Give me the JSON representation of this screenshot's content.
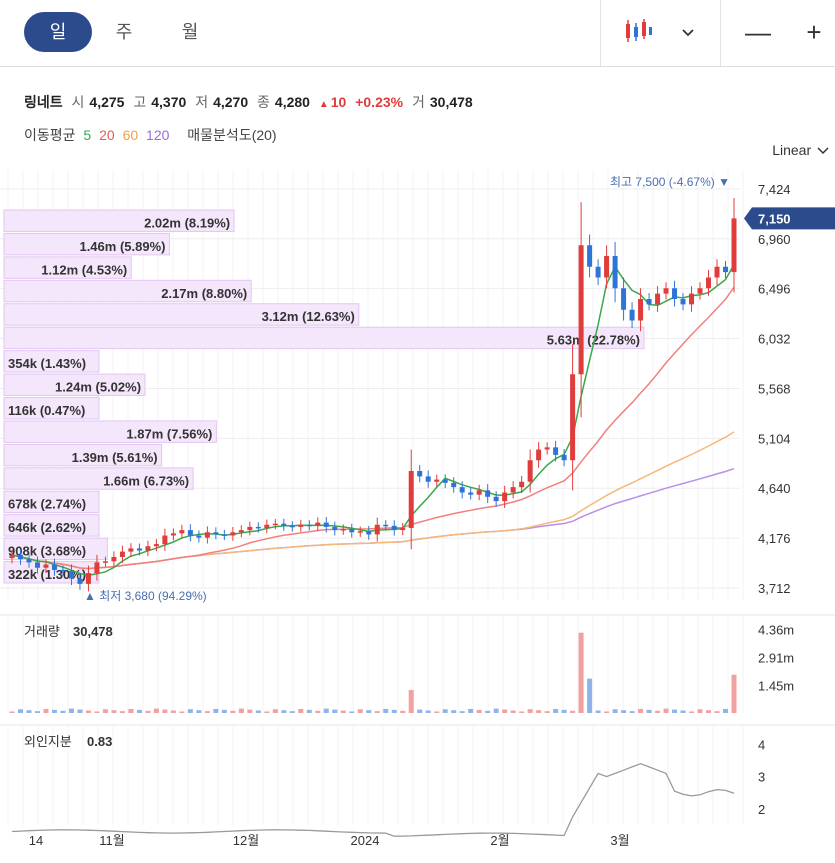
{
  "tabs": [
    {
      "label": "일",
      "active": true
    },
    {
      "label": "주",
      "active": false
    },
    {
      "label": "월",
      "active": false
    }
  ],
  "toolbar": {
    "zoom_out": "—",
    "zoom_in": "+",
    "chart_type_icon": "candlestick-icon",
    "dropdown_icon": "chevron-down-icon"
  },
  "stock": {
    "name": "링네트",
    "open_label": "시",
    "open": "4,275",
    "high_label": "고",
    "high": "4,370",
    "low_label": "저",
    "low": "4,270",
    "close_label": "종",
    "close": "4,280",
    "change_arrow": "▲",
    "change": "10",
    "change_pct": "+0.23%",
    "volume_label": "거",
    "volume": "30,478"
  },
  "indicators": {
    "ma_label": "이동평균",
    "ma": [
      {
        "period": "5",
        "color": "#3aa84a"
      },
      {
        "period": "20",
        "color": "#e85a5a"
      },
      {
        "period": "60",
        "color": "#f0a050"
      },
      {
        "period": "120",
        "color": "#9a6ae0"
      }
    ],
    "profile_label": "매물분석도(20)"
  },
  "scale_label": "Linear",
  "high_marker": "최고 7,500 (-4.67%) ▼",
  "low_marker": "▲ 최저 3,680 (94.29%)",
  "current_price": "7,150",
  "price_axis": [
    "7,424",
    "6,960",
    "6,496",
    "6,032",
    "5,568",
    "5,104",
    "4,640",
    "4,176",
    "3,712"
  ],
  "volume_panel": {
    "label": "거래량",
    "value": "30,478",
    "ticks": [
      "4.36m",
      "2.91m",
      "1.45m"
    ]
  },
  "foreign_panel": {
    "label": "외인지분",
    "value": "0.83",
    "ticks": [
      "4",
      "3",
      "2"
    ]
  },
  "x_axis": [
    "14",
    "11월",
    "12월",
    "2024",
    "2월",
    "3월"
  ],
  "colors": {
    "up": "#e03c3c",
    "down": "#2e74d8",
    "accent": "#2b4b8c",
    "profile": "#f0e0f8"
  },
  "chart_data": {
    "type": "candlestick",
    "price_range": [
      3600,
      7600
    ],
    "closes": [
      4020,
      3980,
      3950,
      3900,
      3930,
      3880,
      3870,
      3800,
      3750,
      3850,
      3950,
      3960,
      4000,
      4050,
      4080,
      4060,
      4100,
      4120,
      4200,
      4220,
      4250,
      4200,
      4180,
      4230,
      4210,
      4200,
      4230,
      4250,
      4280,
      4270,
      4300,
      4310,
      4290,
      4280,
      4300,
      4290,
      4320,
      4280,
      4250,
      4260,
      4230,
      4240,
      4210,
      4300,
      4290,
      4250,
      4270,
      4800,
      4750,
      4700,
      4720,
      4690,
      4650,
      4600,
      4580,
      4620,
      4560,
      4520,
      4600,
      4650,
      4700,
      4900,
      5000,
      5020,
      4950,
      4900,
      5700,
      6900,
      6700,
      6600,
      6800,
      6500,
      6300,
      6200,
      6400,
      6350,
      6450,
      6500,
      6400,
      6350,
      6450,
      6500,
      6600,
      6700,
      6650,
      7150
    ],
    "volume_ticks": [
      4.36,
      2.91,
      1.45
    ],
    "volume_spikes": [
      {
        "index": 47,
        "volume": 1.2
      },
      {
        "index": 67,
        "volume": 4.2
      },
      {
        "index": 68,
        "volume": 1.8
      },
      {
        "index": 85,
        "volume": 2.0
      }
    ],
    "foreign_range": [
      1.5,
      4.6
    ],
    "volume_profile": [
      {
        "label": "2.02m (8.19%)",
        "pct": 8.19
      },
      {
        "label": "1.46m (5.89%)",
        "pct": 5.89
      },
      {
        "label": "1.12m (4.53%)",
        "pct": 4.53
      },
      {
        "label": "2.17m (8.80%)",
        "pct": 8.8
      },
      {
        "label": "3.12m (12.63%)",
        "pct": 12.63
      },
      {
        "label": "5.63m (22.78%)",
        "pct": 22.78
      },
      {
        "label": "354k (1.43%)",
        "pct": 1.43
      },
      {
        "label": "1.24m (5.02%)",
        "pct": 5.02
      },
      {
        "label": "116k (0.47%)",
        "pct": 0.47
      },
      {
        "label": "1.87m (7.56%)",
        "pct": 7.56
      },
      {
        "label": "1.39m (5.61%)",
        "pct": 5.61
      },
      {
        "label": "1.66m (6.73%)",
        "pct": 6.73
      },
      {
        "label": "678k (2.74%)",
        "pct": 2.74
      },
      {
        "label": "646k (2.62%)",
        "pct": 2.62
      },
      {
        "label": "908k (3.68%)",
        "pct": 3.68
      },
      {
        "label": "322k (1.30%)",
        "pct": 1.3
      }
    ]
  }
}
